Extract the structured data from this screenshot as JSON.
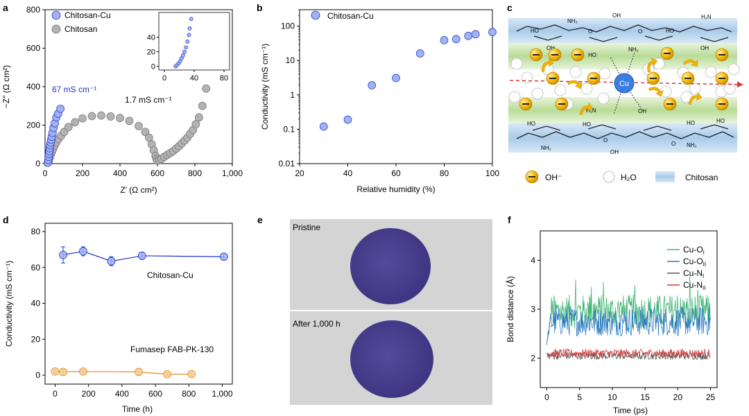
{
  "panels": {
    "a": {
      "letter": "a",
      "xlabel": "Z′ (Ω cm²)",
      "ylabel": "−Z″ (Ω cm²)",
      "legend": [
        "Chitosan-Cu",
        "Chitosan"
      ],
      "annot_cu": "67 mS cm⁻¹",
      "annot_chi": "1.7 mS cm⁻¹"
    },
    "b": {
      "letter": "b",
      "xlabel": "Relative humidity (%)",
      "ylabel": "Conductivity (mS cm⁻¹)",
      "legend": [
        "Chitosan-Cu"
      ]
    },
    "c": {
      "letter": "c",
      "legend": {
        "oh": "OH⁻",
        "h2o": "H₂O",
        "chitosan": "Chitosan"
      },
      "labels": {
        "cu": "Cu",
        "ho": "HO",
        "oh": "OH",
        "nh2": "NH₂",
        "h2n": "H₂N",
        "o": "O",
        "minus": "−"
      }
    },
    "d": {
      "letter": "d",
      "xlabel": "Time (h)",
      "ylabel": "Conductivity (mS cm⁻¹)",
      "label_cu": "Chitosan-Cu",
      "label_fum": "Fumasep FAB-PK-130"
    },
    "e": {
      "letter": "e",
      "top_label": "Pristine",
      "bottom_label": "After 1,000 h"
    },
    "f": {
      "letter": "f",
      "xlabel": "Time (ps)",
      "ylabel": "Bond distance (Å)",
      "legend": [
        "Cu-O",
        "Cu-O",
        "Cu-N",
        "Cu-N"
      ],
      "legend_sub": [
        "I",
        "II",
        "I",
        "II"
      ]
    }
  },
  "colors": {
    "cu_fill": "#9fb3f0",
    "cu_line": "#2233cc",
    "chi_fill": "#b3b3b3",
    "chi_line": "#707070",
    "fum_fill": "#f6cf9a",
    "fum_line": "#e7891f",
    "f_series": [
      "#3cb371",
      "#2a78c0",
      "#555555",
      "#d43a3a"
    ],
    "oh_ball": "#f2b400",
    "band_blue": "#b9d7ee",
    "band_green": "#c8e6b0",
    "cu_ball": "#3a7fe0",
    "photo_bg": "#d5d5d5",
    "disc": "#4a3f8c"
  },
  "chart_data": [
    {
      "panel": "a",
      "type": "scatter",
      "xlim": [
        0,
        1000
      ],
      "ylim": [
        0,
        800
      ],
      "xticks": [
        "0",
        "200",
        "400",
        "600",
        "800",
        "1,000"
      ],
      "yticks": [
        "0",
        "200",
        "400",
        "600",
        "800"
      ],
      "series": [
        {
          "name": "Chitosan-Cu",
          "x": [
            15,
            17,
            19,
            21,
            23,
            25,
            27,
            30,
            33,
            36,
            40,
            45,
            52,
            60,
            70,
            82
          ],
          "y": [
            5,
            20,
            35,
            50,
            65,
            80,
            95,
            110,
            125,
            140,
            160,
            185,
            210,
            240,
            260,
            285
          ]
        },
        {
          "name": "Chitosan",
          "x": [
            15,
            20,
            25,
            30,
            36,
            42,
            50,
            60,
            72,
            86,
            102,
            125,
            160,
            200,
            250,
            300,
            350,
            400,
            450,
            500,
            535,
            555,
            570,
            580,
            590,
            595,
            600,
            610,
            622,
            636,
            652,
            668,
            684,
            700,
            715,
            730,
            745,
            760,
            775,
            790,
            805,
            822,
            840,
            860
          ],
          "y": [
            5,
            15,
            30,
            45,
            60,
            75,
            92,
            110,
            128,
            145,
            165,
            190,
            215,
            235,
            247,
            250,
            245,
            237,
            222,
            195,
            165,
            135,
            100,
            70,
            40,
            25,
            15,
            18,
            25,
            35,
            45,
            55,
            65,
            78,
            90,
            105,
            120,
            135,
            155,
            175,
            205,
            240,
            300,
            390
          ]
        }
      ],
      "inset": {
        "xlim": [
          0,
          80
        ],
        "ylim": [
          -5,
          70
        ],
        "xticks": [
          "0",
          "40",
          "80"
        ],
        "yticks": [
          "0",
          "20",
          "40"
        ],
        "x": [
          15,
          17,
          19,
          21,
          23,
          25,
          27,
          29,
          31,
          33,
          34,
          36
        ],
        "y": [
          0,
          2,
          4,
          7,
          11,
          15,
          20,
          26,
          34,
          43,
          52,
          65
        ]
      }
    },
    {
      "panel": "b",
      "type": "scatter",
      "scale": "log",
      "xlim": [
        20,
        100
      ],
      "ylim": [
        0.01,
        300
      ],
      "xticks": [
        "20",
        "40",
        "60",
        "80",
        "100"
      ],
      "yticks": [
        "0.01",
        "0.1",
        "1",
        "10",
        "100"
      ],
      "series": [
        {
          "name": "Chitosan-Cu",
          "x": [
            30,
            40,
            50,
            60,
            70,
            80,
            85,
            90,
            93,
            100
          ],
          "y": [
            0.12,
            0.19,
            1.9,
            3.1,
            16,
            39,
            42,
            52,
            58,
            67
          ]
        }
      ]
    },
    {
      "panel": "d",
      "type": "line",
      "xlim": [
        -60,
        1060
      ],
      "ylim": [
        -5,
        80
      ],
      "xticks": [
        "0",
        "200",
        "400",
        "600",
        "800",
        "1,000"
      ],
      "yticks": [
        "0",
        "20",
        "40",
        "60",
        "80"
      ],
      "series": [
        {
          "name": "Chitosan-Cu",
          "x": [
            48,
            168,
            336,
            520,
            1010
          ],
          "y": [
            67,
            69,
            63.5,
            66.5,
            66
          ],
          "err": [
            4.5,
            2.5,
            2.5,
            2,
            1.5
          ]
        },
        {
          "name": "Fumasep FAB-PK-130",
          "x": [
            0,
            48,
            168,
            500,
            670,
            816
          ],
          "y": [
            2,
            1.8,
            2,
            1.8,
            0.5,
            0.6
          ],
          "err": [
            1.2,
            1.2,
            1.2,
            1.5,
            1.2,
            1.2
          ]
        }
      ]
    },
    {
      "panel": "f",
      "type": "line",
      "xlim": [
        -1,
        26
      ],
      "ylim": [
        1.4,
        4.6
      ],
      "xticks": [
        "0",
        "5",
        "10",
        "15",
        "20",
        "25"
      ],
      "yticks": [
        "2",
        "3",
        "4"
      ],
      "series": [
        {
          "name": "Cu-OI",
          "mean": 2.95,
          "amplitude": 0.35
        },
        {
          "name": "Cu-OII",
          "mean": 2.75,
          "amplitude": 0.3
        },
        {
          "name": "Cu-NI",
          "mean": 2.05,
          "amplitude": 0.08
        },
        {
          "name": "Cu-NII",
          "mean": 2.1,
          "amplitude": 0.09
        }
      ]
    }
  ]
}
